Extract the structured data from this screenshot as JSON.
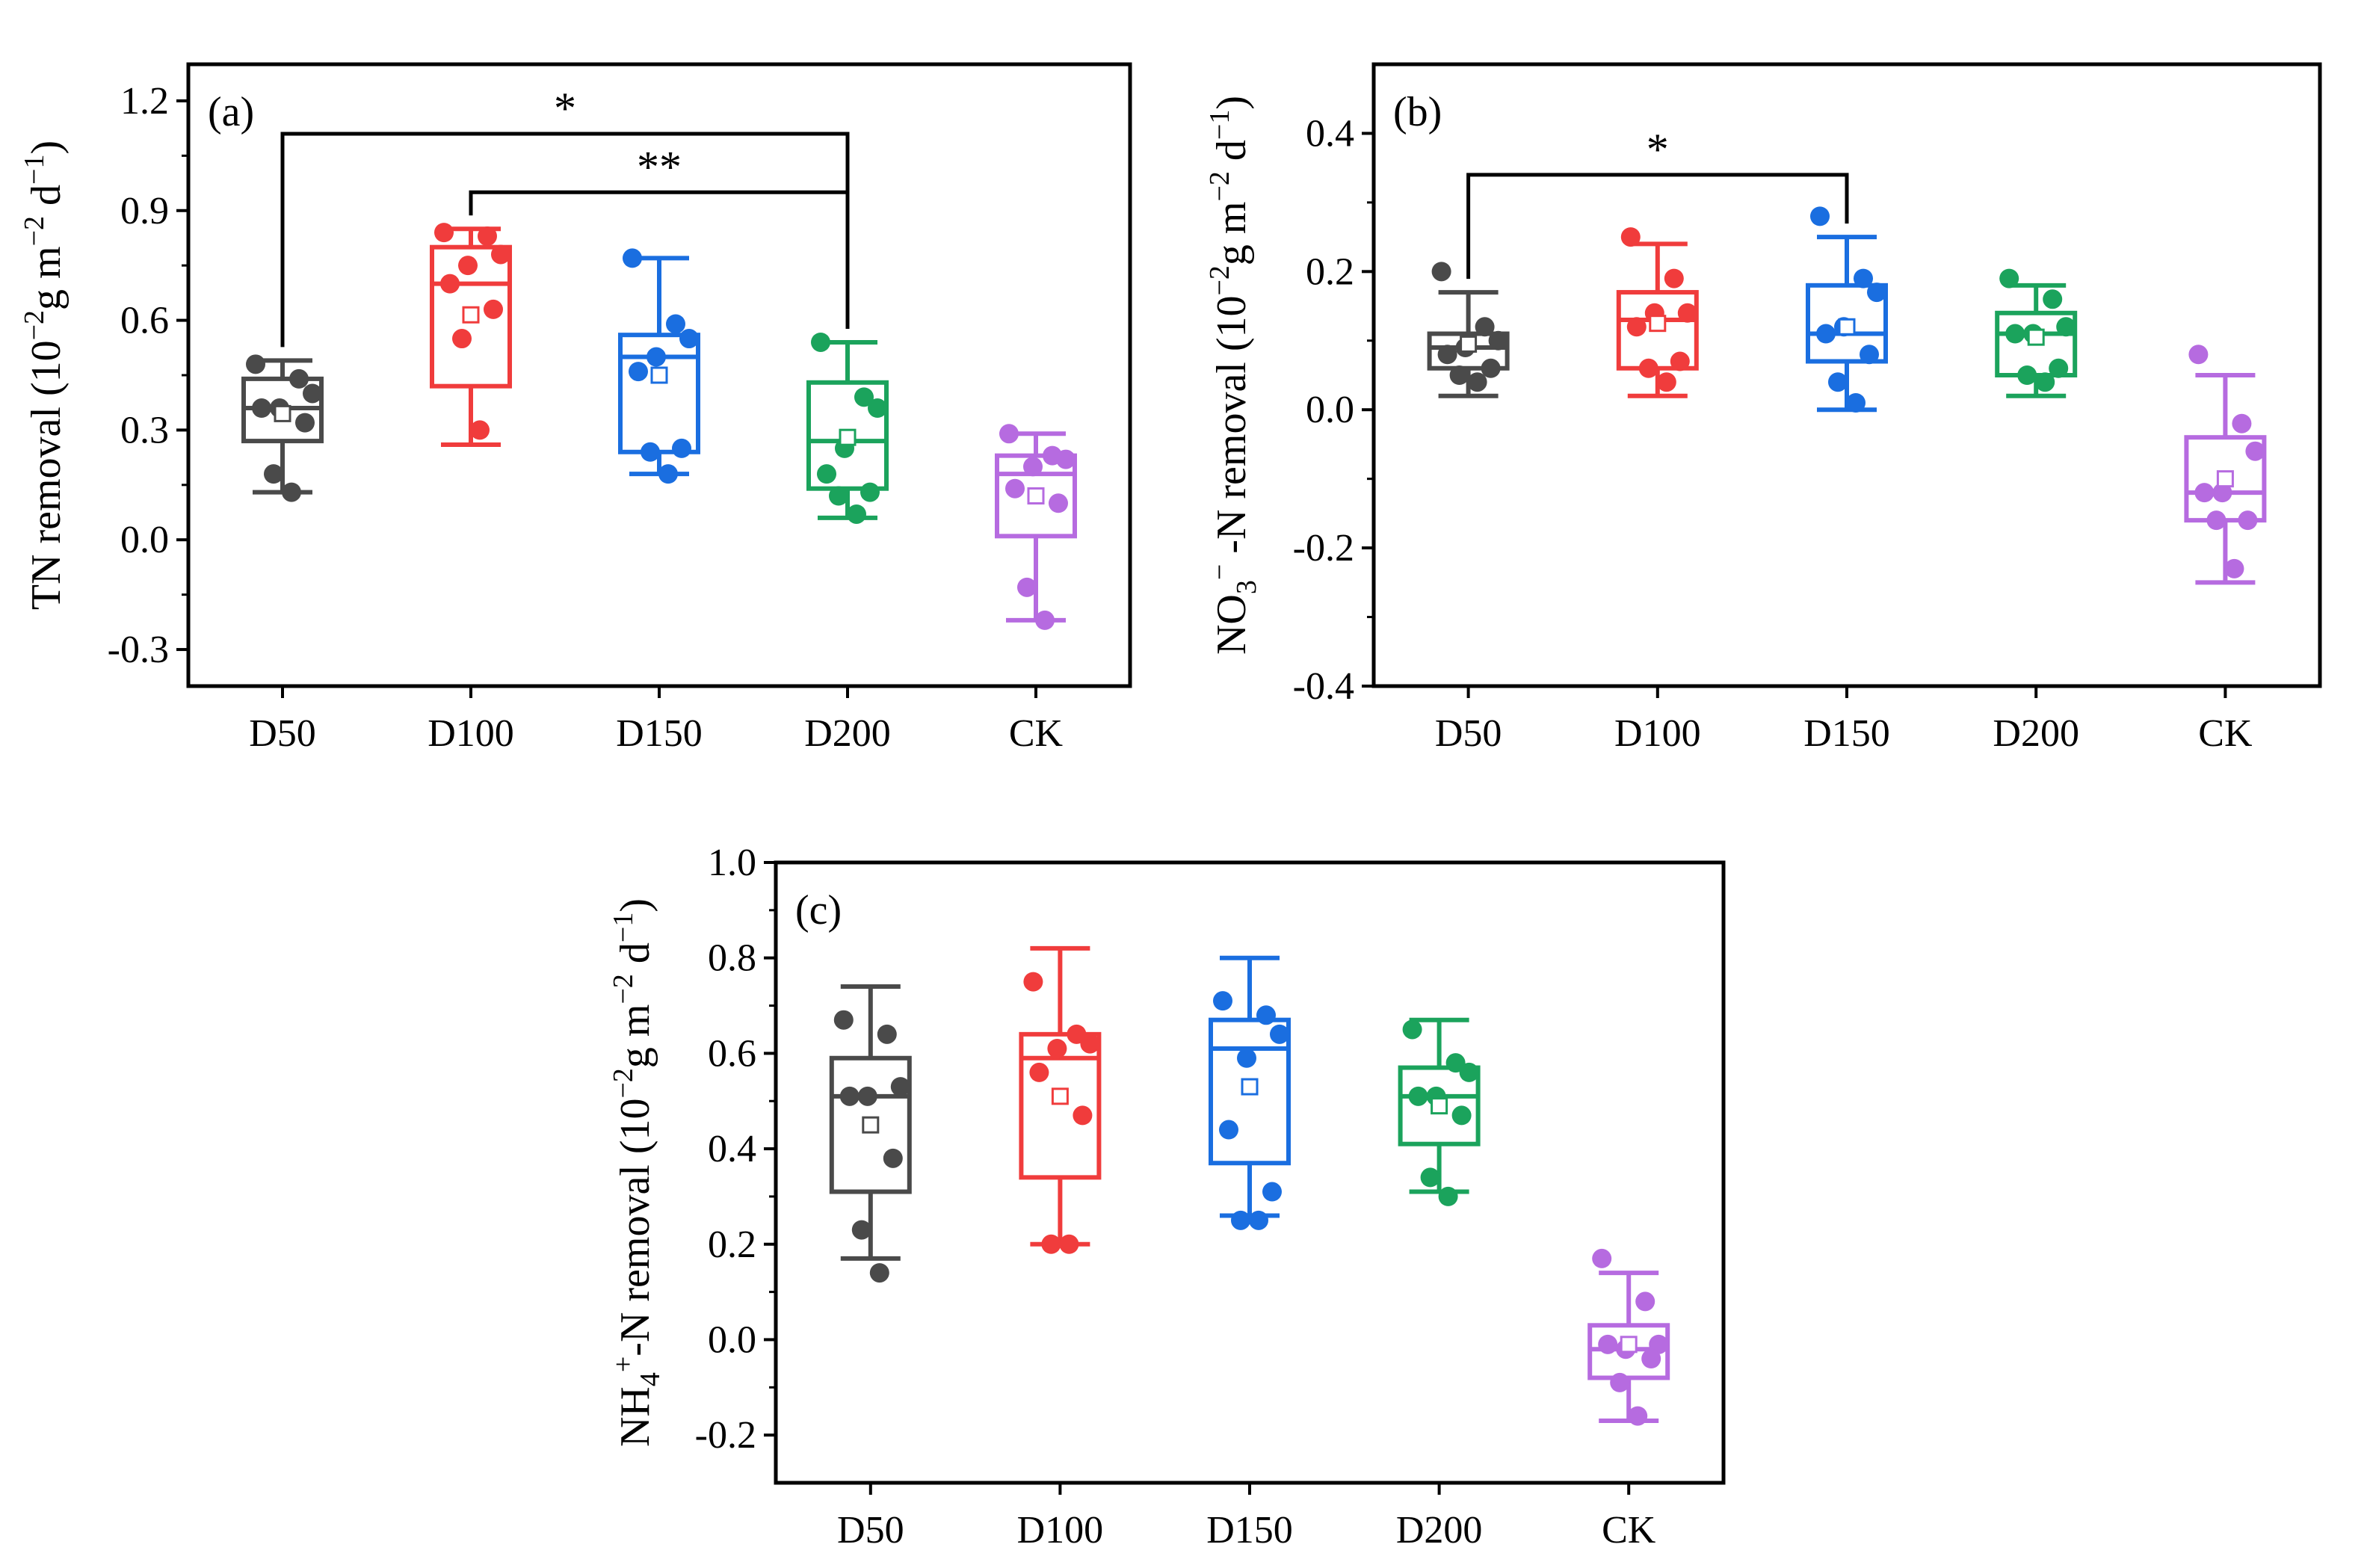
{
  "chart_data": [
    {
      "type": "box",
      "panel_label": "(a)",
      "ylabel": {
        "segments": [
          {
            "t": "TN removal (10",
            "s": "n"
          },
          {
            "t": "−2",
            "s": "sup"
          },
          {
            "t": "g m",
            "s": "n"
          },
          {
            "t": "−2",
            "s": "sup"
          },
          {
            "t": " d",
            "s": "n"
          },
          {
            "t": "−1",
            "s": "sup"
          },
          {
            "t": ")",
            "s": "n"
          }
        ]
      },
      "categories": [
        "D50",
        "D100",
        "D150",
        "D200",
        "CK"
      ],
      "ylim": [
        -0.4,
        1.3
      ],
      "yticks": [
        -0.3,
        0.0,
        0.3,
        0.6,
        0.9,
        1.2
      ],
      "ytick_labels": [
        "-0.3",
        "0.0",
        "0.3",
        "0.6",
        "0.9",
        "1.2"
      ],
      "series": [
        {
          "name": "D50",
          "color": "#4a4a4a",
          "whisker_low": 0.13,
          "q1": 0.27,
          "median": 0.36,
          "q3": 0.44,
          "whisker_high": 0.49,
          "mean": 0.345,
          "points": [
            0.48,
            0.44,
            0.4,
            0.36,
            0.36,
            0.32,
            0.18,
            0.13
          ]
        },
        {
          "name": "D100",
          "color": "#f03c3c",
          "whisker_low": 0.26,
          "q1": 0.42,
          "median": 0.7,
          "q3": 0.8,
          "whisker_high": 0.85,
          "mean": 0.615,
          "points": [
            0.84,
            0.83,
            0.78,
            0.75,
            0.7,
            0.63,
            0.55,
            0.3
          ]
        },
        {
          "name": "D150",
          "color": "#1a6ee0",
          "whisker_low": 0.18,
          "q1": 0.24,
          "median": 0.5,
          "q3": 0.56,
          "whisker_high": 0.77,
          "mean": 0.45,
          "points": [
            0.77,
            0.59,
            0.55,
            0.5,
            0.46,
            0.25,
            0.24,
            0.18
          ]
        },
        {
          "name": "D200",
          "color": "#1ba35c",
          "whisker_low": 0.06,
          "q1": 0.14,
          "median": 0.27,
          "q3": 0.43,
          "whisker_high": 0.54,
          "mean": 0.28,
          "points": [
            0.54,
            0.39,
            0.36,
            0.25,
            0.18,
            0.13,
            0.12,
            0.07
          ]
        },
        {
          "name": "CK",
          "color": "#b66be0",
          "whisker_low": -0.22,
          "q1": 0.01,
          "median": 0.18,
          "q3": 0.23,
          "whisker_high": 0.29,
          "mean": 0.12,
          "points": [
            0.29,
            0.23,
            0.22,
            0.2,
            0.14,
            0.1,
            -0.13,
            -0.22
          ]
        }
      ],
      "significance": [
        {
          "from": "D50",
          "to": "D200",
          "label": "*",
          "level": 1.11
        },
        {
          "from": "D100",
          "to": "D200",
          "label": "**",
          "level": 0.95
        }
      ]
    },
    {
      "type": "box",
      "panel_label": "(b)",
      "ylabel": {
        "segments": [
          {
            "t": "NO",
            "s": "n"
          },
          {
            "t": "3",
            "s": "sub"
          },
          {
            "t": "−",
            "s": "sup"
          },
          {
            "t": " -N removal (10",
            "s": "n"
          },
          {
            "t": "−2",
            "s": "sup"
          },
          {
            "t": "g m",
            "s": "n"
          },
          {
            "t": "−2",
            "s": "sup"
          },
          {
            "t": " d",
            "s": "n"
          },
          {
            "t": "−1",
            "s": "sup"
          },
          {
            "t": ")",
            "s": "n"
          }
        ]
      },
      "categories": [
        "D50",
        "D100",
        "D150",
        "D200",
        "CK"
      ],
      "ylim": [
        -0.4,
        0.5
      ],
      "yticks": [
        -0.4,
        -0.2,
        0.0,
        0.2,
        0.4
      ],
      "ytick_labels": [
        "-0.4",
        "-0.2",
        "0.0",
        "0.2",
        "0.4"
      ],
      "series": [
        {
          "name": "D50",
          "color": "#4a4a4a",
          "whisker_low": 0.02,
          "q1": 0.06,
          "median": 0.09,
          "q3": 0.11,
          "whisker_high": 0.17,
          "mean": 0.095,
          "points": [
            0.2,
            0.12,
            0.1,
            0.09,
            0.08,
            0.06,
            0.05,
            0.04
          ]
        },
        {
          "name": "D100",
          "color": "#f03c3c",
          "whisker_low": 0.02,
          "q1": 0.06,
          "median": 0.13,
          "q3": 0.17,
          "whisker_high": 0.24,
          "mean": 0.125,
          "points": [
            0.25,
            0.19,
            0.14,
            0.14,
            0.12,
            0.07,
            0.06,
            0.04
          ]
        },
        {
          "name": "D150",
          "color": "#1a6ee0",
          "whisker_low": 0.0,
          "q1": 0.07,
          "median": 0.11,
          "q3": 0.18,
          "whisker_high": 0.25,
          "mean": 0.12,
          "points": [
            0.28,
            0.19,
            0.17,
            0.12,
            0.11,
            0.08,
            0.04,
            0.01
          ]
        },
        {
          "name": "D200",
          "color": "#1ba35c",
          "whisker_low": 0.02,
          "q1": 0.05,
          "median": 0.11,
          "q3": 0.14,
          "whisker_high": 0.18,
          "mean": 0.105,
          "points": [
            0.19,
            0.16,
            0.12,
            0.11,
            0.11,
            0.06,
            0.05,
            0.04
          ]
        },
        {
          "name": "CK",
          "color": "#b66be0",
          "whisker_low": -0.25,
          "q1": -0.16,
          "median": -0.12,
          "q3": -0.04,
          "whisker_high": 0.05,
          "mean": -0.1,
          "points": [
            0.08,
            -0.02,
            -0.06,
            -0.12,
            -0.12,
            -0.16,
            -0.16,
            -0.23
          ]
        }
      ],
      "significance": [
        {
          "from": "D50",
          "to": "D150",
          "label": "*",
          "level": 0.34
        }
      ]
    },
    {
      "type": "box",
      "panel_label": "(c)",
      "ylabel": {
        "segments": [
          {
            "t": "NH",
            "s": "n"
          },
          {
            "t": "4",
            "s": "sub"
          },
          {
            "t": "+",
            "s": "sup"
          },
          {
            "t": "-N removal (10",
            "s": "n"
          },
          {
            "t": "−2",
            "s": "sup"
          },
          {
            "t": "g m",
            "s": "n"
          },
          {
            "t": "−2",
            "s": "sup"
          },
          {
            "t": " d",
            "s": "n"
          },
          {
            "t": "−1",
            "s": "sup"
          },
          {
            "t": ")",
            "s": "n"
          }
        ]
      },
      "categories": [
        "D50",
        "D100",
        "D150",
        "D200",
        "CK"
      ],
      "ylim": [
        -0.3,
        1.0
      ],
      "yticks": [
        -0.2,
        0.0,
        0.2,
        0.4,
        0.6,
        0.8,
        1.0
      ],
      "ytick_labels": [
        "-0.2",
        "0.0",
        "0.2",
        "0.4",
        "0.6",
        "0.8",
        "1.0"
      ],
      "series": [
        {
          "name": "D50",
          "color": "#4a4a4a",
          "whisker_low": 0.17,
          "q1": 0.31,
          "median": 0.51,
          "q3": 0.59,
          "whisker_high": 0.74,
          "mean": 0.45,
          "points": [
            0.67,
            0.64,
            0.53,
            0.51,
            0.51,
            0.38,
            0.23,
            0.14
          ]
        },
        {
          "name": "D100",
          "color": "#f03c3c",
          "whisker_low": 0.2,
          "q1": 0.34,
          "median": 0.59,
          "q3": 0.64,
          "whisker_high": 0.82,
          "mean": 0.51,
          "points": [
            0.75,
            0.64,
            0.62,
            0.61,
            0.56,
            0.47,
            0.2,
            0.2
          ]
        },
        {
          "name": "D150",
          "color": "#1a6ee0",
          "whisker_low": 0.26,
          "q1": 0.37,
          "median": 0.61,
          "q3": 0.67,
          "whisker_high": 0.8,
          "mean": 0.53,
          "points": [
            0.71,
            0.68,
            0.64,
            0.59,
            0.44,
            0.31,
            0.25,
            0.25
          ]
        },
        {
          "name": "D200",
          "color": "#1ba35c",
          "whisker_low": 0.31,
          "q1": 0.41,
          "median": 0.51,
          "q3": 0.57,
          "whisker_high": 0.67,
          "mean": 0.49,
          "points": [
            0.65,
            0.58,
            0.56,
            0.51,
            0.51,
            0.47,
            0.34,
            0.3
          ]
        },
        {
          "name": "CK",
          "color": "#b66be0",
          "whisker_low": -0.17,
          "q1": -0.08,
          "median": -0.02,
          "q3": 0.03,
          "whisker_high": 0.14,
          "mean": -0.01,
          "points": [
            0.17,
            0.08,
            -0.01,
            -0.02,
            -0.01,
            -0.04,
            -0.09,
            -0.16
          ]
        }
      ],
      "significance": []
    }
  ]
}
